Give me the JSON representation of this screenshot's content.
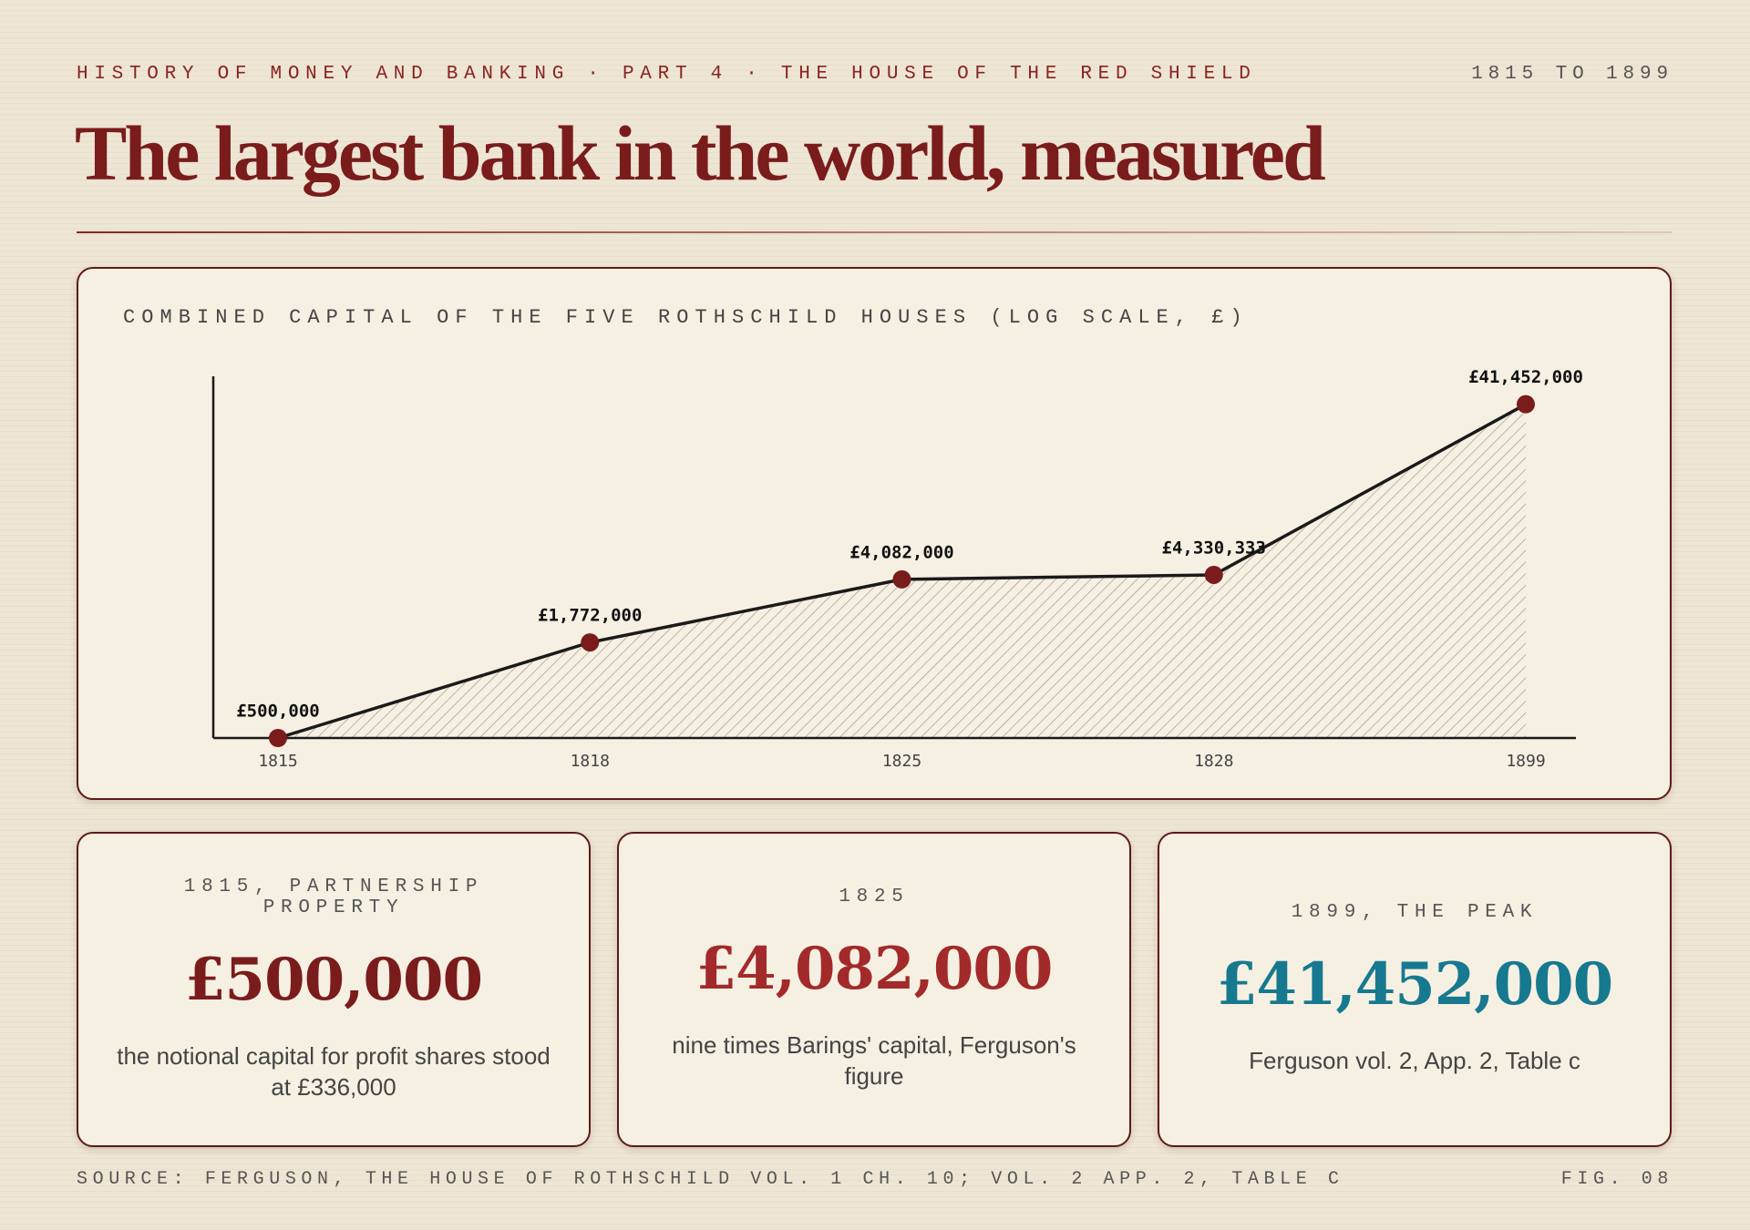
{
  "header": {
    "kicker": "HISTORY OF MONEY AND BANKING · PART 4 · THE HOUSE OF THE RED SHIELD",
    "range": "1815 TO 1899",
    "title": "The largest bank in the world, measured"
  },
  "chart_data": {
    "type": "line",
    "title": "COMBINED CAPITAL OF THE FIVE ROTHSCHILD HOUSES (LOG SCALE, £)",
    "categories": [
      "1815",
      "1818",
      "1825",
      "1828",
      "1899"
    ],
    "values": [
      500000,
      1772000,
      4082000,
      4330333,
      41452000
    ],
    "value_labels": [
      "£500,000",
      "£1,772,000",
      "£4,082,000",
      "£4,330,333",
      "£41,452,000"
    ],
    "color": "#7a1c1c",
    "line_color": "#1a1a1a",
    "log_scale": true,
    "ylim": [
      500000,
      60000000
    ]
  },
  "cards": [
    {
      "label": "1815, PARTNERSHIP PROPERTY",
      "value": "£500,000",
      "note": "the notional capital for profit shares stood at £336,000",
      "color": "#7a1c1c"
    },
    {
      "label": "1825",
      "value": "£4,082,000",
      "note": "nine times Barings' capital, Ferguson's figure",
      "color": "#a32a2a"
    },
    {
      "label": "1899, THE PEAK",
      "value": "£41,452,000",
      "note": "Ferguson vol. 2, App. 2, Table c",
      "color": "#17798f"
    }
  ],
  "footer": {
    "source": "SOURCE: FERGUSON, THE HOUSE OF ROTHSCHILD VOL. 1 CH. 10; VOL. 2 APP. 2, TABLE C",
    "figure": "FIG. 08"
  }
}
